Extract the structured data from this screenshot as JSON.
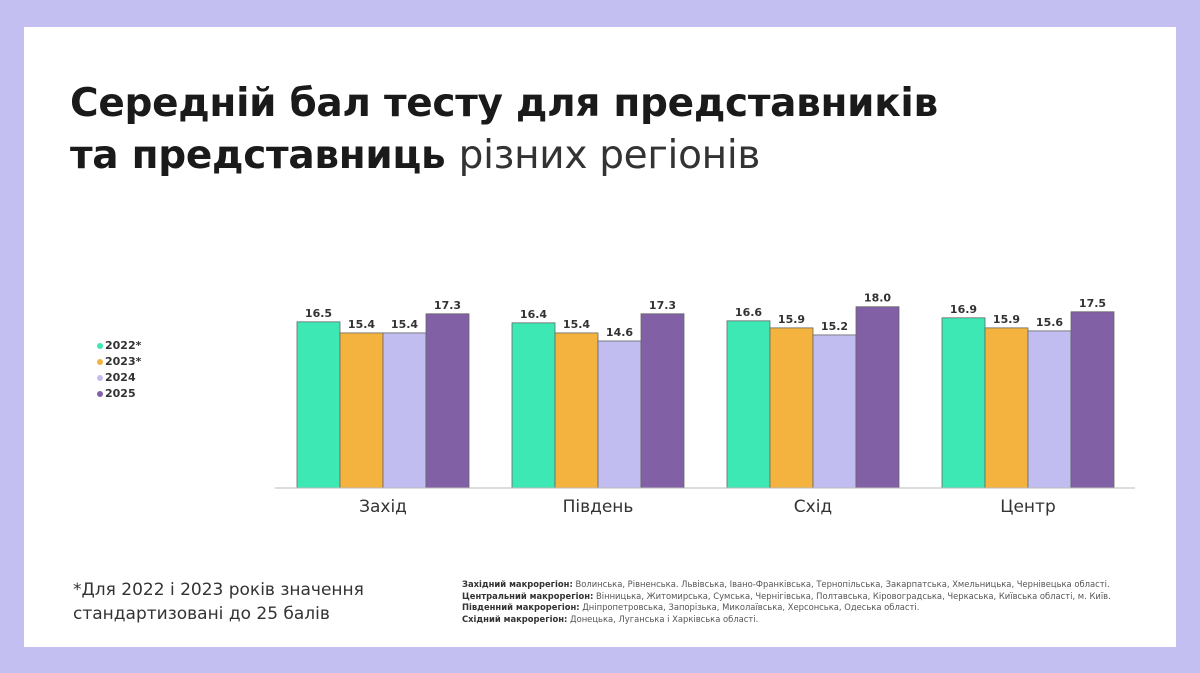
{
  "title": {
    "bold": "Середній бал тесту для представників та представниць",
    "light": "різних регіонів",
    "line1": "Середній бал тесту для представників",
    "line2_bold": "та представниць"
  },
  "footnote": {
    "line1": "*Для 2022 і 2023 років значення",
    "line2": "стандартизовані до 25 балів"
  },
  "regions": [
    {
      "label": "Західний макрорегіон:",
      "text": "Волинська, Рівненська. Львівська, Івано-Франківська, Тернопільська, Закарпатська, Хмельницька, Чернівецька області."
    },
    {
      "label": "Центральний макрорегіон:",
      "text": "Вінницька, Житомирська, Сумська, Чернігівська, Полтавська, Кіровоградська, Черкаська, Київська області, м. Київ."
    },
    {
      "label": "Південний макрорегіон:",
      "text": "Дніпропетровська, Запорізька, Миколаївська, Херсонська, Одеська області."
    },
    {
      "label": "Східний макрорегіон:",
      "text": "Донецька, Луганська і Харківська області."
    }
  ],
  "chart_data": {
    "type": "bar",
    "title": "Середній бал тесту для представників та представниць різних регіонів",
    "categories": [
      "Захід",
      "Південь",
      "Схід",
      "Центр"
    ],
    "series": [
      {
        "name": "2022*",
        "color": "#3de8b5",
        "values": [
          16.5,
          16.4,
          16.6,
          16.9
        ]
      },
      {
        "name": "2023*",
        "color": "#f4b23f",
        "values": [
          15.4,
          15.4,
          15.9,
          15.9
        ]
      },
      {
        "name": "2024",
        "color": "#c1bdf1",
        "values": [
          15.4,
          14.6,
          15.2,
          15.6
        ]
      },
      {
        "name": "2025",
        "color": "#8160a5",
        "values": [
          17.3,
          17.3,
          18.0,
          17.5
        ]
      }
    ],
    "ylim": [
      0,
      18.5
    ],
    "legend_position": "left",
    "grid": false,
    "xlabel": "",
    "ylabel": ""
  }
}
